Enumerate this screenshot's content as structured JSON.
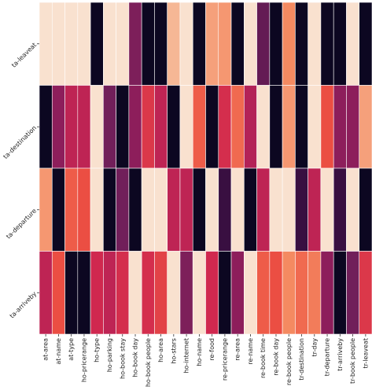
{
  "chart_data": {
    "type": "heatmap",
    "title": "",
    "xlabel": "",
    "ylabel": "",
    "rows": [
      "ta-leaveat",
      "ta-destination",
      "ta-departure",
      "ta-arriveby"
    ],
    "columns": [
      "at-area",
      "at-name",
      "at-type",
      "ho-pricerange",
      "ho-type",
      "ho-parking",
      "ho-book stay",
      "ho-book day",
      "ho-book people",
      "ho-area",
      "ho-stars",
      "ho-internet",
      "ho-name",
      "re-food",
      "re-pricerange",
      "re-area",
      "re-name",
      "re-book time",
      "re-book day",
      "re-book people",
      "tr-destination",
      "tr-day",
      "tr-departure",
      "tr-arriveby",
      "tr-book people",
      "tr-leaveat"
    ],
    "values": [
      [
        0.97,
        0.97,
        0.97,
        0.97,
        0.02,
        0.97,
        0.97,
        0.28,
        0.02,
        0.02,
        0.85,
        0.97,
        0.02,
        0.8,
        0.78,
        0.02,
        0.97,
        0.22,
        0.02,
        0.75,
        0.02,
        0.97,
        0.02,
        0.02,
        0.97,
        0.02
      ],
      [
        0.02,
        0.32,
        0.45,
        0.45,
        0.97,
        0.25,
        0.02,
        0.32,
        0.55,
        0.45,
        0.02,
        0.97,
        0.65,
        0.02,
        0.52,
        0.68,
        0.42,
        0.97,
        0.02,
        0.78,
        0.02,
        0.97,
        0.62,
        0.32,
        0.32,
        0.8
      ],
      [
        0.78,
        0.02,
        0.65,
        0.62,
        0.97,
        0.02,
        0.25,
        0.02,
        0.97,
        0.97,
        0.45,
        0.45,
        0.02,
        0.97,
        0.12,
        0.97,
        0.02,
        0.45,
        0.97,
        0.97,
        0.12,
        0.45,
        0.97,
        0.12,
        0.97,
        0.02
      ],
      [
        0.45,
        0.62,
        0.02,
        0.02,
        0.5,
        0.45,
        0.52,
        0.97,
        0.52,
        0.58,
        0.97,
        0.28,
        0.97,
        0.5,
        0.02,
        0.32,
        0.97,
        0.65,
        0.62,
        0.75,
        0.68,
        0.72,
        0.32,
        0.02,
        0.25,
        0.55
      ]
    ],
    "colormap": [
      "#03051a",
      "#3b0f43",
      "#711f5a",
      "#a31e5b",
      "#d0284f",
      "#ec5043",
      "#f48a61",
      "#f7c2a2",
      "#faebdd"
    ],
    "legend": "none",
    "grid": false
  }
}
